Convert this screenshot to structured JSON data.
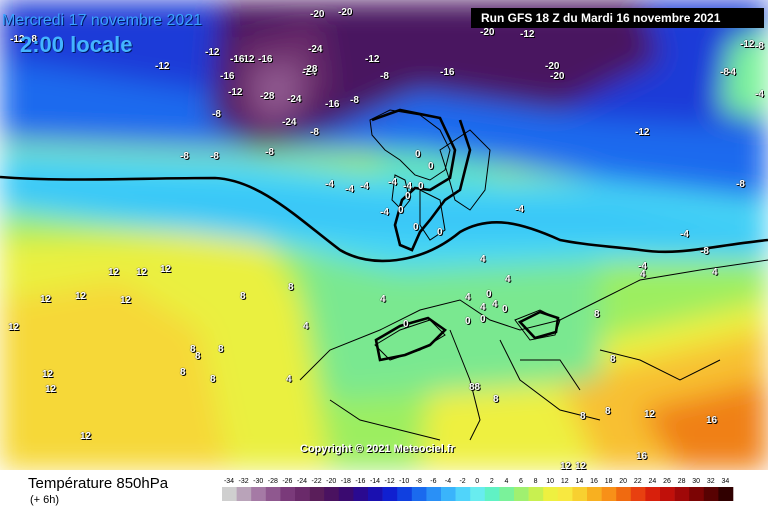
{
  "header": {
    "date_line": "Mercredi 17 novembre 2021",
    "hour_line": "2:00 locale",
    "run_label": "Run GFS 18 Z du Mardi 16 novembre 2021"
  },
  "copyright": "Copyright © 2021 Meteociel.fr",
  "footer": {
    "title": "Température 850hPa",
    "subtitle": "(+ 6h)"
  },
  "scale": {
    "labels": [
      "-34",
      "-32",
      "-30",
      "-28",
      "-26",
      "-24",
      "-22",
      "-20",
      "-18",
      "-16",
      "-14",
      "-12",
      "-10",
      "-8",
      "-6",
      "-4",
      "-2",
      "0",
      "2",
      "4",
      "6",
      "8",
      "10",
      "12",
      "14",
      "16",
      "18",
      "20",
      "22",
      "24",
      "26",
      "28",
      "30",
      "32",
      "34"
    ],
    "colors": [
      "#cfcfcf",
      "#b9a3b9",
      "#a57aa5",
      "#8f588f",
      "#7a3a7a",
      "#6a2a6a",
      "#5a1e5a",
      "#4a1260",
      "#3a0a70",
      "#2a0a90",
      "#1a10b0",
      "#1020d0",
      "#1040e0",
      "#1a6aee",
      "#2a90f6",
      "#3ab4fb",
      "#50d4fa",
      "#68ecef",
      "#60f2c4",
      "#7af29a",
      "#a0f070",
      "#c8f050",
      "#eef040",
      "#f8e840",
      "#f8d030",
      "#f8b020",
      "#f89018",
      "#f06a10",
      "#e84010",
      "#d8200c",
      "#c0100a",
      "#a00808",
      "#7c0404",
      "#580202",
      "#300000"
    ]
  },
  "map": {
    "labels": [
      {
        "text": "-20"
      },
      {
        "text": "-20"
      },
      {
        "text": "-20"
      },
      {
        "text": "-20"
      },
      {
        "text": "-20"
      },
      {
        "text": "-12"
      },
      {
        "text": "-12"
      },
      {
        "text": "-12"
      },
      {
        "text": "-12"
      },
      {
        "text": "-12"
      },
      {
        "text": "-12"
      },
      {
        "text": "-12"
      },
      {
        "text": "-12"
      },
      {
        "text": "-16"
      },
      {
        "text": "-16"
      },
      {
        "text": "-16"
      },
      {
        "text": "-16"
      },
      {
        "text": "-16"
      },
      {
        "text": "-24"
      },
      {
        "text": "-24"
      },
      {
        "text": "-28"
      },
      {
        "text": "-28"
      },
      {
        "text": "-24"
      },
      {
        "text": "-24"
      },
      {
        "text": "-8"
      },
      {
        "text": "-8"
      },
      {
        "text": "-8"
      },
      {
        "text": "-8"
      },
      {
        "text": "-8"
      },
      {
        "text": "-8"
      },
      {
        "text": "-8"
      },
      {
        "text": "-8"
      },
      {
        "text": "-8"
      },
      {
        "text": "-8"
      },
      {
        "text": "-12"
      },
      {
        "text": "-4"
      },
      {
        "text": "-4"
      },
      {
        "text": "-4"
      },
      {
        "text": "-4"
      },
      {
        "text": "-4"
      },
      {
        "text": "-4"
      },
      {
        "text": "-4"
      },
      {
        "text": "-4"
      },
      {
        "text": "0"
      },
      {
        "text": "0"
      },
      {
        "text": "0"
      },
      {
        "text": "0"
      },
      {
        "text": "0"
      },
      {
        "text": "0"
      },
      {
        "text": "0"
      },
      {
        "text": "0"
      },
      {
        "text": "0"
      },
      {
        "text": "0"
      },
      {
        "text": "0"
      },
      {
        "text": "0"
      },
      {
        "text": "4"
      },
      {
        "text": "4"
      },
      {
        "text": "4"
      },
      {
        "text": "4"
      },
      {
        "text": "4"
      },
      {
        "text": "4"
      },
      {
        "text": "4"
      },
      {
        "text": "4"
      },
      {
        "text": "4"
      },
      {
        "text": "4"
      },
      {
        "text": "8"
      },
      {
        "text": "8"
      },
      {
        "text": "8"
      },
      {
        "text": "8"
      },
      {
        "text": "8"
      },
      {
        "text": "8"
      },
      {
        "text": "8"
      },
      {
        "text": "8"
      },
      {
        "text": "8"
      },
      {
        "text": "8"
      },
      {
        "text": "8"
      },
      {
        "text": "8"
      },
      {
        "text": "88"
      },
      {
        "text": "12"
      },
      {
        "text": "12"
      },
      {
        "text": "12"
      },
      {
        "text": "12"
      },
      {
        "text": "12"
      },
      {
        "text": "12"
      },
      {
        "text": "12"
      },
      {
        "text": "12"
      },
      {
        "text": "12"
      },
      {
        "text": "12"
      },
      {
        "text": "12"
      },
      {
        "text": "12"
      },
      {
        "text": "12"
      },
      {
        "text": "16"
      },
      {
        "text": "16"
      },
      {
        "text": "-4"
      },
      {
        "text": "-4"
      },
      {
        "text": "-8"
      },
      {
        "text": "-8"
      },
      {
        "text": "-4"
      }
    ]
  }
}
